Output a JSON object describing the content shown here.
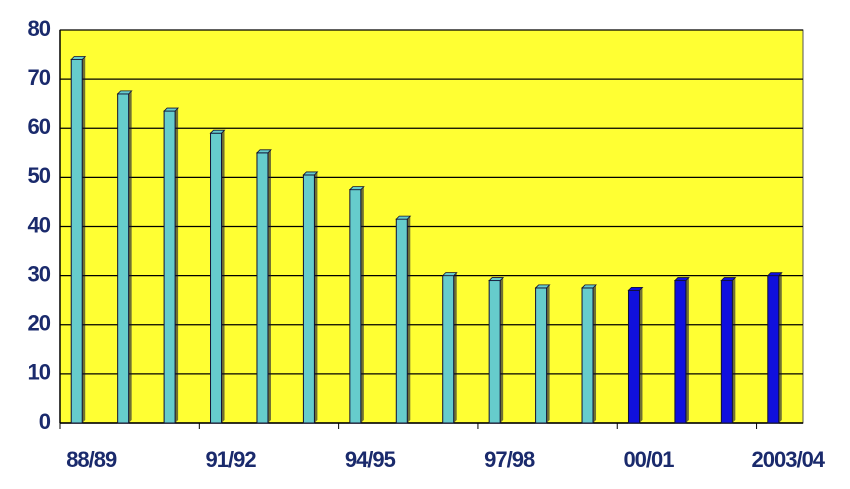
{
  "chart_data": {
    "type": "bar",
    "categories": [
      "88/89",
      null,
      null,
      "91/92",
      null,
      null,
      "94/95",
      null,
      null,
      "97/98",
      null,
      null,
      "00/01",
      null,
      null,
      "2003/04"
    ],
    "values": [
      74,
      67,
      63.5,
      59,
      55,
      50.5,
      47.5,
      41.5,
      30,
      29,
      27.5,
      27.5,
      27,
      29,
      29,
      30
    ],
    "colors": [
      "#66cccc",
      "#66cccc",
      "#66cccc",
      "#66cccc",
      "#66cccc",
      "#66cccc",
      "#66cccc",
      "#66cccc",
      "#66cccc",
      "#66cccc",
      "#66cccc",
      "#66cccc",
      "#1010dd",
      "#1010dd",
      "#1010dd",
      "#1010dd"
    ],
    "ylim": [
      0,
      80
    ],
    "yticks": [
      0,
      10,
      20,
      30,
      40,
      50,
      60,
      70,
      80
    ],
    "grid": true,
    "plot_background": "#ffff33"
  }
}
